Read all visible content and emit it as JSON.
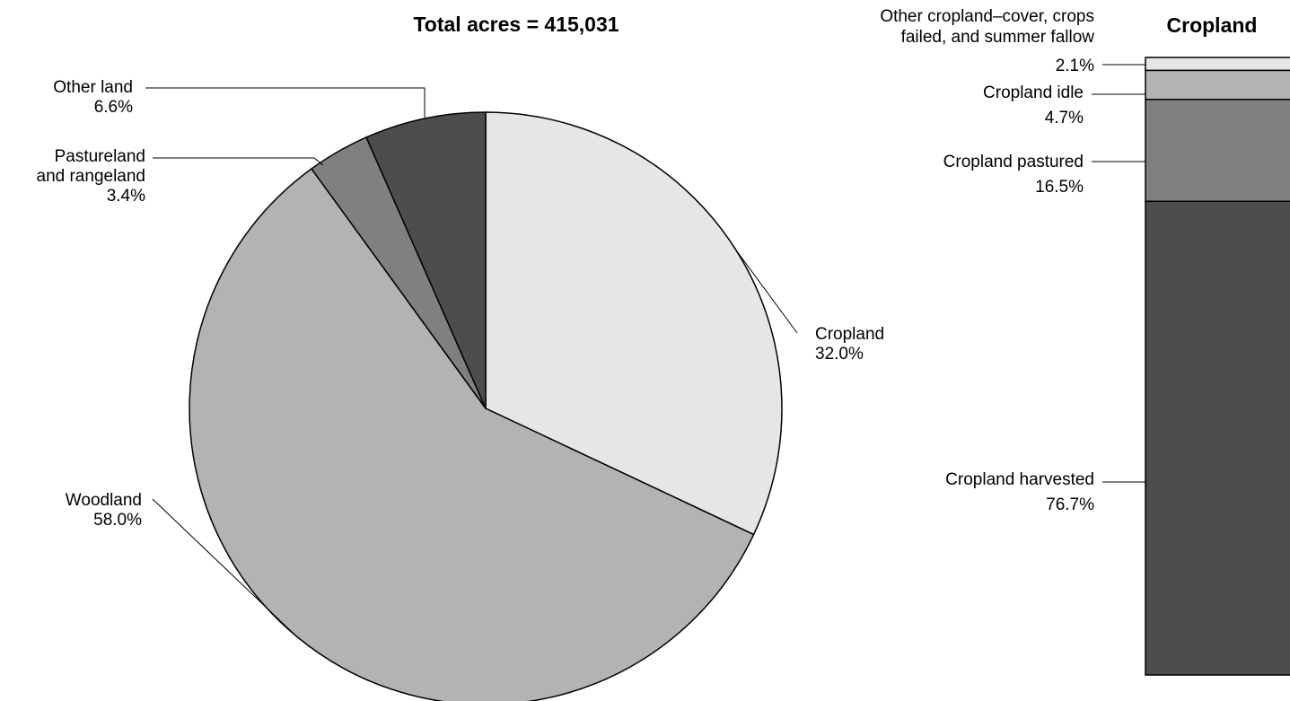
{
  "chart_data": [
    {
      "type": "pie",
      "title": "Total acres = 415,031",
      "slices": [
        {
          "key": "cropland",
          "lines": [
            "Cropland"
          ],
          "label": "Cropland",
          "value": 32.0,
          "value_label": "32.0%",
          "color": "#e6e6e6"
        },
        {
          "key": "woodland",
          "lines": [
            "Woodland"
          ],
          "label": "Woodland",
          "value": 58.0,
          "value_label": "58.0%",
          "color": "#b3b3b3"
        },
        {
          "key": "pastureland",
          "lines": [
            "Pastureland",
            "and rangeland"
          ],
          "label": "Pastureland and rangeland",
          "value": 3.4,
          "value_label": "3.4%",
          "color": "#808080"
        },
        {
          "key": "other-land",
          "lines": [
            "Other land"
          ],
          "label": "Other land",
          "value": 6.6,
          "value_label": "6.6%",
          "color": "#4d4d4d"
        }
      ]
    },
    {
      "type": "bar",
      "stacked": true,
      "title": "Cropland",
      "segments": [
        {
          "key": "other-cropland",
          "lines": [
            "Other cropland–cover, crops",
            "failed, and summer fallow"
          ],
          "label": "Other cropland–cover, crops failed, and summer fallow",
          "value": 2.1,
          "value_label": "2.1%",
          "color": "#e6e6e6"
        },
        {
          "key": "cropland-idle",
          "lines": [
            "Cropland idle"
          ],
          "label": "Cropland idle",
          "value": 4.7,
          "value_label": "4.7%",
          "color": "#b3b3b3"
        },
        {
          "key": "cropland-pastured",
          "lines": [
            "Cropland pastured"
          ],
          "label": "Cropland pastured",
          "value": 16.5,
          "value_label": "16.5%",
          "color": "#808080"
        },
        {
          "key": "cropland-harvested",
          "lines": [
            "Cropland harvested"
          ],
          "label": "Cropland harvested",
          "value": 76.7,
          "value_label": "76.7%",
          "color": "#4d4d4d"
        }
      ]
    }
  ]
}
